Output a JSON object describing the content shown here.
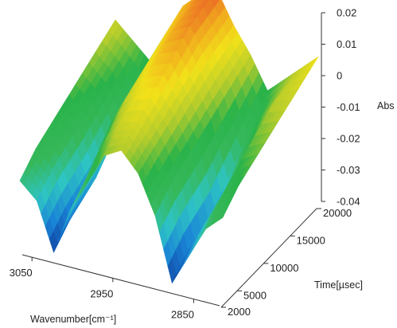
{
  "chart_data": {
    "type": "surface-3d",
    "title": "",
    "xlabel": "Wavenumber[cm⁻¹]",
    "ylabel": "Time[µsec]",
    "zlabel": "Abs",
    "x_ticks": [
      "3050",
      "2950",
      "2850"
    ],
    "y_ticks": [
      "2000",
      "5000",
      "10000",
      "15000",
      "20000"
    ],
    "z_ticks": [
      "0.02",
      "0.01",
      "0",
      "-0.01",
      "-0.02",
      "-0.03",
      "-0.04"
    ],
    "xlim": [
      3060,
      2820
    ],
    "ylim": [
      2000,
      20000
    ],
    "zlim": [
      -0.04,
      0.02
    ],
    "wavenumbers": [
      3060,
      3040,
      3020,
      3000,
      2980,
      2960,
      2940,
      2920,
      2900,
      2880,
      2860,
      2840,
      2820
    ],
    "times": [
      2000,
      5000,
      10000,
      15000,
      20000
    ],
    "abs_values": [
      [
        -0.02,
        -0.025,
        -0.04,
        -0.025,
        -0.015,
        -0.005,
        -0.002,
        -0.008,
        -0.02,
        -0.04,
        -0.03,
        -0.02,
        -0.015
      ],
      [
        -0.015,
        -0.02,
        -0.035,
        -0.02,
        -0.008,
        0.0,
        0.002,
        -0.005,
        -0.015,
        -0.035,
        -0.025,
        -0.015,
        -0.01
      ],
      [
        -0.01,
        -0.015,
        -0.03,
        -0.01,
        0.0,
        0.006,
        0.008,
        0.0,
        -0.01,
        -0.03,
        -0.02,
        -0.008,
        -0.005
      ],
      [
        -0.005,
        -0.01,
        -0.02,
        -0.005,
        0.005,
        0.012,
        0.015,
        0.005,
        -0.005,
        -0.02,
        -0.01,
        -0.002,
        0.0
      ],
      [
        0.0,
        -0.005,
        -0.01,
        0.0,
        0.01,
        0.015,
        0.018,
        0.008,
        0.0,
        -0.01,
        -0.005,
        0.0,
        0.005
      ]
    ],
    "colorscale": [
      "#0f3f9e",
      "#1a84d6",
      "#2ec4c4",
      "#36b85a",
      "#2ab34a",
      "#b4cc2c",
      "#f2e11a",
      "#f0a41e",
      "#e9472a"
    ],
    "grid": false,
    "legend": "none"
  }
}
